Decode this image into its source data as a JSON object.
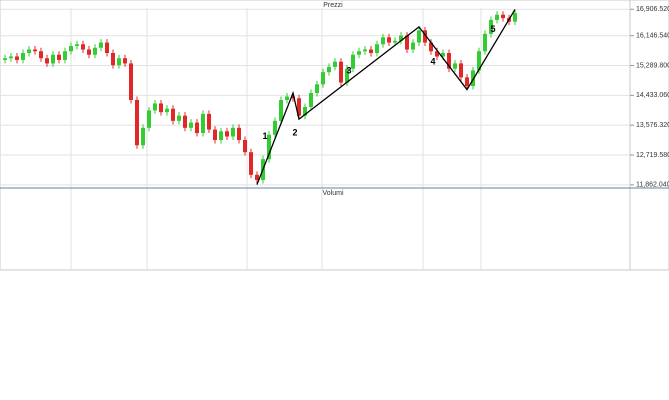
{
  "chart_data": {
    "type": "candlestick",
    "title": "Prezzi",
    "volume_title": "Volumi",
    "up_color": "#33cc33",
    "down_color": "#e02828",
    "wave_color": "#000000",
    "categories": [
      null,
      null,
      null,
      null,
      null,
      null,
      null,
      null,
      null,
      null,
      null,
      null,
      null,
      null,
      null,
      null,
      null,
      null,
      null,
      null,
      null,
      null,
      null,
      null,
      null,
      null,
      null,
      null,
      null,
      null,
      null,
      null,
      null,
      null,
      null,
      null,
      null,
      null,
      null,
      null,
      null,
      null,
      null,
      null,
      null,
      null,
      null,
      null,
      null,
      null,
      null,
      null,
      null,
      null,
      null,
      null,
      null,
      null,
      null,
      null,
      null,
      null,
      null,
      null,
      null,
      null,
      null,
      null,
      null,
      null,
      null,
      null,
      null,
      null,
      null,
      null,
      null,
      null,
      null,
      null,
      null,
      null,
      null,
      null,
      null,
      null
    ],
    "open": [
      15450,
      15500,
      15550,
      15450,
      15650,
      15750,
      15700,
      15500,
      15350,
      15600,
      15450,
      15700,
      15850,
      15900,
      15750,
      15600,
      15800,
      15950,
      15650,
      15300,
      15500,
      15350,
      14300,
      13000,
      13500,
      14000,
      14200,
      13950,
      14050,
      13700,
      13850,
      13500,
      13650,
      13350,
      13900,
      13450,
      13150,
      13400,
      13250,
      13500,
      13150,
      12800,
      12150,
      12000,
      12600,
      13300,
      13700,
      14300,
      14400,
      14350,
      13850,
      14100,
      14500,
      14750,
      15100,
      15250,
      15400,
      14800,
      15200,
      15600,
      15700,
      15750,
      15650,
      15900,
      16100,
      15950,
      16000,
      16150,
      15750,
      15950,
      16300,
      15950,
      15700,
      15550,
      15650,
      15200,
      15350,
      14950,
      14700,
      15150,
      15700,
      16200,
      16600,
      16750,
      16650,
      16550
    ],
    "high": [
      15600,
      15650,
      15650,
      15750,
      15850,
      15850,
      15800,
      15600,
      15700,
      15700,
      15800,
      15950,
      16000,
      16000,
      15850,
      15900,
      16050,
      16050,
      15750,
      15600,
      15600,
      15450,
      14400,
      13600,
      14100,
      14300,
      14300,
      14150,
      14150,
      13950,
      13950,
      13750,
      13750,
      14000,
      14000,
      13550,
      13500,
      13500,
      13600,
      13600,
      13250,
      12900,
      12250,
      12700,
      13400,
      13800,
      14400,
      14500,
      14500,
      14450,
      14200,
      14600,
      14850,
      15200,
      15350,
      15500,
      15500,
      15300,
      15700,
      15800,
      15850,
      15850,
      16000,
      16200,
      16200,
      16100,
      16250,
      16250,
      16050,
      16400,
      16400,
      16050,
      15800,
      15750,
      15750,
      15450,
      15450,
      15050,
      15250,
      15800,
      16300,
      16700,
      16850,
      16850,
      16750,
      16900
    ],
    "low": [
      15350,
      15400,
      15350,
      15350,
      15550,
      15600,
      15400,
      15250,
      15250,
      15350,
      15350,
      15600,
      15750,
      15650,
      15500,
      15500,
      15700,
      15550,
      15200,
      15200,
      15250,
      14200,
      12900,
      12900,
      13400,
      13900,
      13850,
      13850,
      13600,
      13600,
      13400,
      13400,
      13250,
      13250,
      13350,
      13050,
      13050,
      13150,
      13150,
      13050,
      12700,
      12050,
      11870,
      11900,
      12500,
      13200,
      13600,
      14200,
      14250,
      13750,
      13750,
      14000,
      14400,
      14650,
      15000,
      15150,
      14700,
      14700,
      15100,
      15500,
      15600,
      15550,
      15550,
      15800,
      15850,
      15850,
      15900,
      15650,
      15650,
      15850,
      15850,
      15600,
      15450,
      15450,
      15100,
      15100,
      14850,
      14600,
      14600,
      15050,
      15600,
      16100,
      16500,
      16550,
      16450,
      16450
    ],
    "close": [
      15500,
      15550,
      15450,
      15650,
      15750,
      15700,
      15500,
      15350,
      15600,
      15450,
      15700,
      15850,
      15900,
      15750,
      15600,
      15800,
      15950,
      15650,
      15300,
      15500,
      15350,
      14300,
      13000,
      13500,
      14000,
      14200,
      13950,
      14050,
      13700,
      13850,
      13500,
      13650,
      13350,
      13900,
      13450,
      13150,
      13400,
      13250,
      13500,
      13150,
      12800,
      12150,
      12000,
      12600,
      13300,
      13700,
      14300,
      14400,
      14350,
      13850,
      14100,
      14500,
      14750,
      15100,
      15250,
      15400,
      14800,
      15200,
      15600,
      15700,
      15750,
      15650,
      15900,
      16100,
      15950,
      16000,
      16150,
      15750,
      15950,
      16300,
      15950,
      15700,
      15550,
      15650,
      15200,
      15350,
      14950,
      14700,
      15150,
      15700,
      16200,
      16600,
      16750,
      16650,
      16550,
      16800
    ],
    "wave_points": [
      {
        "index": 42,
        "value": 11870
      },
      {
        "index": 48,
        "value": 14500
      },
      {
        "index": 49,
        "value": 13750
      },
      {
        "index": 69,
        "value": 16400
      },
      {
        "index": 77,
        "value": 14600
      },
      {
        "index": 85,
        "value": 16900
      }
    ],
    "wave_labels": [
      "1",
      "2",
      "3",
      "4",
      "5"
    ],
    "ylim": [
      11800,
      17000
    ],
    "yticks": [
      {
        "value": 11862.04,
        "label": "11,862.0400"
      },
      {
        "value": 12719.58,
        "label": "12,719.5800"
      },
      {
        "value": 13576.3201,
        "label": "13,576.3201"
      },
      {
        "value": 14433.0601,
        "label": "14,433.0601"
      },
      {
        "value": 15289.8001,
        "label": "15,289.8001"
      },
      {
        "value": 16146.54,
        "label": "16,146.5400"
      },
      {
        "value": 16906.52,
        "label": "16,906.5200"
      }
    ],
    "grid": true
  }
}
